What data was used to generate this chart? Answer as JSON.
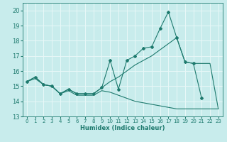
{
  "xlabel": "Humidex (Indice chaleur)",
  "background_color": "#c8ecec",
  "grid_color": "#e8f8f8",
  "line_color": "#1e7a6e",
  "xlim": [
    -0.5,
    23.5
  ],
  "ylim": [
    13.0,
    20.5
  ],
  "yticks": [
    13,
    14,
    15,
    16,
    17,
    18,
    19,
    20
  ],
  "xticks": [
    0,
    1,
    2,
    3,
    4,
    5,
    6,
    7,
    8,
    9,
    10,
    11,
    12,
    13,
    14,
    15,
    16,
    17,
    18,
    19,
    20,
    21,
    22,
    23
  ],
  "line1_x": [
    0,
    1,
    2,
    3,
    4,
    5,
    6,
    7,
    8,
    9,
    10,
    11,
    12,
    13,
    14,
    15,
    16,
    17,
    18,
    19,
    20,
    21
  ],
  "line1_y": [
    15.3,
    15.6,
    15.1,
    15.0,
    14.5,
    14.8,
    14.5,
    14.5,
    14.5,
    14.9,
    16.7,
    14.8,
    16.7,
    17.0,
    17.5,
    17.6,
    18.8,
    19.9,
    18.2,
    16.6,
    16.5,
    14.2
  ],
  "line2_x": [
    0,
    1,
    2,
    3,
    4,
    5,
    6,
    7,
    8,
    9,
    10,
    11,
    12,
    13,
    14,
    15,
    16,
    17,
    18,
    19,
    20,
    21,
    22,
    23
  ],
  "line2_y": [
    15.3,
    15.6,
    15.1,
    15.0,
    14.5,
    14.8,
    14.5,
    14.5,
    14.5,
    14.9,
    15.3,
    15.6,
    16.0,
    16.4,
    16.7,
    17.0,
    17.4,
    17.8,
    18.2,
    16.6,
    16.5,
    16.5,
    16.5,
    13.5
  ],
  "line3_x": [
    0,
    1,
    2,
    3,
    4,
    5,
    6,
    7,
    8,
    9,
    10,
    11,
    12,
    13,
    14,
    15,
    16,
    17,
    18,
    19,
    20,
    21,
    22,
    23
  ],
  "line3_y": [
    15.3,
    15.5,
    15.1,
    15.0,
    14.5,
    14.7,
    14.4,
    14.4,
    14.4,
    14.7,
    14.6,
    14.4,
    14.2,
    14.0,
    13.9,
    13.8,
    13.7,
    13.6,
    13.5,
    13.5,
    13.5,
    13.5,
    13.5,
    13.5
  ]
}
